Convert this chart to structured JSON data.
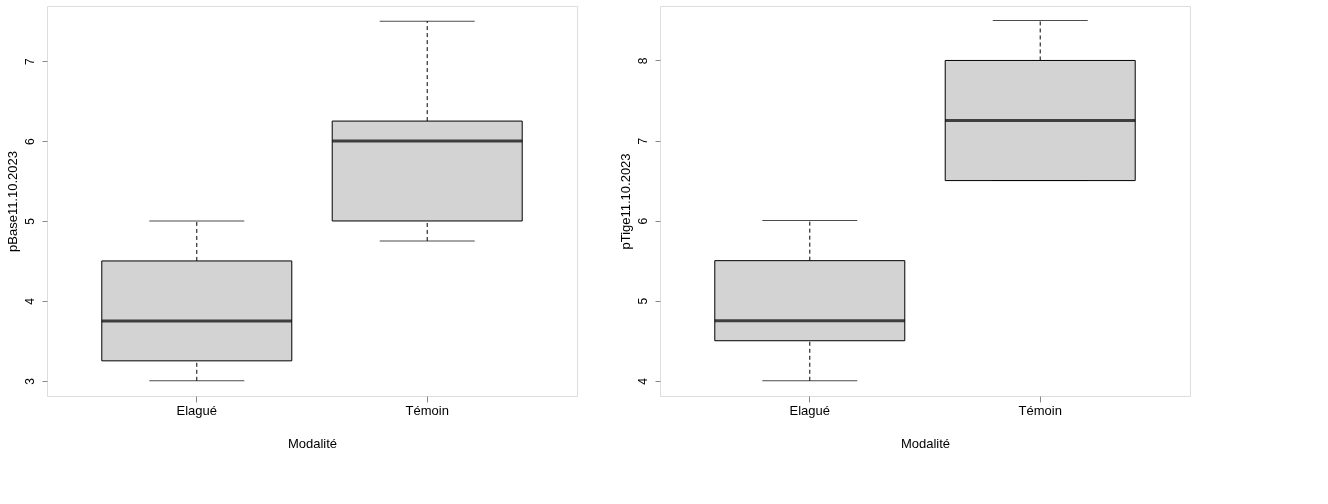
{
  "chart_data": [
    {
      "type": "box",
      "xlabel": "Modalité",
      "ylabel": "pBase11.10.2023",
      "categories": [
        "Elagué",
        "Témoin"
      ],
      "ylim": [
        2.81,
        7.69
      ],
      "yticks": [
        3,
        4,
        5,
        6,
        7
      ],
      "grid": false,
      "series": [
        {
          "color": "#d3d3d3",
          "boxes": [
            {
              "low": 3,
              "q1": 3.25,
              "median": 3.75,
              "q3": 4.5,
              "high": 5
            },
            {
              "low": 4.75,
              "q1": 5,
              "median": 6,
              "q3": 6.25,
              "high": 7.5
            }
          ]
        }
      ]
    },
    {
      "type": "box",
      "xlabel": "Modalité",
      "ylabel": "pTige11.10.2023",
      "categories": [
        "Elagué",
        "Témoin"
      ],
      "ylim": [
        3.81,
        8.68
      ],
      "yticks": [
        4,
        5,
        6,
        7,
        8
      ],
      "grid": false,
      "series": [
        {
          "color": "#d3d3d3",
          "boxes": [
            {
              "low": 4,
              "q1": 4.5,
              "median": 4.75,
              "q3": 5.5,
              "high": 6
            },
            {
              "low": 6.5,
              "q1": 6.5,
              "median": 7.25,
              "q3": 8,
              "high": 8.5
            }
          ]
        }
      ]
    }
  ]
}
